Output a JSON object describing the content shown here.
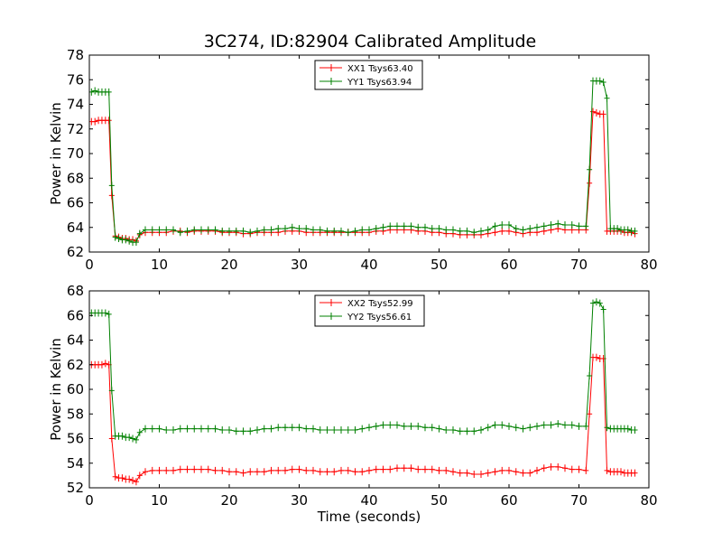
{
  "figure": {
    "title": "3C274, ID:82904 Calibrated Amplitude"
  },
  "chart_data": [
    {
      "type": "line",
      "title": "3C274, ID:82904 Calibrated Amplitude",
      "xlabel": "",
      "ylabel": "Power in Kelvin",
      "xlim": [
        0,
        80
      ],
      "ylim": [
        62,
        78
      ],
      "xticks": [
        "0",
        "10",
        "20",
        "30",
        "40",
        "50",
        "60",
        "70",
        "80"
      ],
      "yticks": [
        "62",
        "64",
        "66",
        "68",
        "70",
        "72",
        "74",
        "76",
        "78"
      ],
      "grid": false,
      "legend_position": "top-center",
      "marker": "+",
      "series": [
        {
          "name": "XX1 Tsys63.40",
          "color": "#ff0000",
          "x": [
            0.3,
            0.8,
            1.3,
            1.8,
            2.3,
            2.8,
            3.2,
            3.7,
            4.2,
            4.7,
            5.2,
            5.7,
            6.2,
            6.7,
            7.2,
            8,
            9,
            10,
            11,
            12,
            13,
            14,
            15,
            16,
            17,
            18,
            19,
            20,
            21,
            22,
            23,
            24,
            25,
            26,
            27,
            28,
            29,
            30,
            31,
            32,
            33,
            34,
            35,
            36,
            37,
            38,
            39,
            40,
            41,
            42,
            43,
            44,
            45,
            46,
            47,
            48,
            49,
            50,
            51,
            52,
            53,
            54,
            55,
            56,
            57,
            58,
            59,
            60,
            61,
            62,
            63,
            64,
            65,
            66,
            67,
            68,
            69,
            70,
            71,
            71.5,
            72,
            72.5,
            73,
            73.5,
            74,
            74.5,
            75,
            75.5,
            76,
            76.5,
            77,
            77.5,
            78
          ],
          "values": [
            72.6,
            72.6,
            72.7,
            72.7,
            72.7,
            72.7,
            66.6,
            63.3,
            63.2,
            63.1,
            63.1,
            63.0,
            63.0,
            62.9,
            63.4,
            63.6,
            63.6,
            63.6,
            63.6,
            63.7,
            63.7,
            63.6,
            63.7,
            63.7,
            63.7,
            63.7,
            63.6,
            63.6,
            63.6,
            63.5,
            63.5,
            63.6,
            63.6,
            63.6,
            63.6,
            63.7,
            63.7,
            63.7,
            63.6,
            63.6,
            63.6,
            63.6,
            63.6,
            63.6,
            63.6,
            63.6,
            63.6,
            63.6,
            63.7,
            63.7,
            63.8,
            63.8,
            63.8,
            63.8,
            63.7,
            63.7,
            63.6,
            63.6,
            63.5,
            63.5,
            63.4,
            63.4,
            63.4,
            63.4,
            63.5,
            63.6,
            63.7,
            63.7,
            63.6,
            63.5,
            63.6,
            63.6,
            63.7,
            63.8,
            63.9,
            63.8,
            63.8,
            63.8,
            63.8,
            67.6,
            73.4,
            73.3,
            73.2,
            73.2,
            63.7,
            63.7,
            63.7,
            63.7,
            63.7,
            63.6,
            63.6,
            63.6,
            63.5
          ]
        },
        {
          "name": "YY1 Tsys63.94",
          "color": "#008000",
          "x": [
            0.3,
            0.8,
            1.3,
            1.8,
            2.3,
            2.8,
            3.2,
            3.7,
            4.2,
            4.7,
            5.2,
            5.7,
            6.2,
            6.7,
            7.2,
            8,
            9,
            10,
            11,
            12,
            13,
            14,
            15,
            16,
            17,
            18,
            19,
            20,
            21,
            22,
            23,
            24,
            25,
            26,
            27,
            28,
            29,
            30,
            31,
            32,
            33,
            34,
            35,
            36,
            37,
            38,
            39,
            40,
            41,
            42,
            43,
            44,
            45,
            46,
            47,
            48,
            49,
            50,
            51,
            52,
            53,
            54,
            55,
            56,
            57,
            58,
            59,
            60,
            61,
            62,
            63,
            64,
            65,
            66,
            67,
            68,
            69,
            70,
            71,
            71.5,
            72,
            72.5,
            73,
            73.5,
            74,
            74.5,
            75,
            75.5,
            76,
            76.5,
            77,
            77.5,
            78
          ],
          "values": [
            75.0,
            75.1,
            75.0,
            75.0,
            75.0,
            75.0,
            67.4,
            63.2,
            63.1,
            63.0,
            63.0,
            62.9,
            62.8,
            62.8,
            63.5,
            63.8,
            63.8,
            63.8,
            63.8,
            63.8,
            63.6,
            63.7,
            63.8,
            63.8,
            63.8,
            63.8,
            63.7,
            63.7,
            63.7,
            63.7,
            63.6,
            63.7,
            63.8,
            63.8,
            63.9,
            63.9,
            64.0,
            63.9,
            63.9,
            63.8,
            63.8,
            63.7,
            63.7,
            63.7,
            63.6,
            63.7,
            63.8,
            63.8,
            63.9,
            64.0,
            64.1,
            64.1,
            64.1,
            64.1,
            64.0,
            64.0,
            63.9,
            63.9,
            63.8,
            63.8,
            63.7,
            63.7,
            63.6,
            63.7,
            63.8,
            64.1,
            64.2,
            64.2,
            63.9,
            63.8,
            63.9,
            64.0,
            64.1,
            64.2,
            64.3,
            64.2,
            64.2,
            64.1,
            64.1,
            68.7,
            75.9,
            75.9,
            75.9,
            75.8,
            74.5,
            63.9,
            63.9,
            63.9,
            63.8,
            63.8,
            63.8,
            63.7,
            63.7
          ]
        }
      ]
    },
    {
      "type": "line",
      "title": "",
      "xlabel": "Time (seconds)",
      "ylabel": "Power in Kelvin",
      "xlim": [
        0,
        80
      ],
      "ylim": [
        52,
        68
      ],
      "xticks": [
        "0",
        "10",
        "20",
        "30",
        "40",
        "50",
        "60",
        "70",
        "80"
      ],
      "yticks": [
        "52",
        "54",
        "56",
        "58",
        "60",
        "62",
        "64",
        "66",
        "68"
      ],
      "grid": false,
      "legend_position": "top-center",
      "marker": "+",
      "series": [
        {
          "name": "XX2 Tsys52.99",
          "color": "#ff0000",
          "x": [
            0.3,
            0.8,
            1.3,
            1.8,
            2.3,
            2.8,
            3.2,
            3.7,
            4.2,
            4.7,
            5.2,
            5.7,
            6.2,
            6.7,
            7.2,
            8,
            9,
            10,
            11,
            12,
            13,
            14,
            15,
            16,
            17,
            18,
            19,
            20,
            21,
            22,
            23,
            24,
            25,
            26,
            27,
            28,
            29,
            30,
            31,
            32,
            33,
            34,
            35,
            36,
            37,
            38,
            39,
            40,
            41,
            42,
            43,
            44,
            45,
            46,
            47,
            48,
            49,
            50,
            51,
            52,
            53,
            54,
            55,
            56,
            57,
            58,
            59,
            60,
            61,
            62,
            63,
            64,
            65,
            66,
            67,
            68,
            69,
            70,
            71,
            71.5,
            72,
            72.5,
            73,
            73.5,
            74,
            74.5,
            75,
            75.5,
            76,
            76.5,
            77,
            77.5,
            78
          ],
          "values": [
            62.0,
            62.0,
            62.0,
            62.0,
            62.1,
            62.0,
            56.0,
            52.9,
            52.8,
            52.8,
            52.7,
            52.7,
            52.6,
            52.5,
            53.0,
            53.3,
            53.4,
            53.4,
            53.4,
            53.4,
            53.5,
            53.5,
            53.5,
            53.5,
            53.5,
            53.4,
            53.4,
            53.3,
            53.3,
            53.2,
            53.3,
            53.3,
            53.3,
            53.4,
            53.4,
            53.4,
            53.5,
            53.5,
            53.4,
            53.4,
            53.3,
            53.3,
            53.3,
            53.4,
            53.4,
            53.3,
            53.3,
            53.4,
            53.5,
            53.5,
            53.5,
            53.6,
            53.6,
            53.6,
            53.5,
            53.5,
            53.5,
            53.4,
            53.4,
            53.3,
            53.2,
            53.2,
            53.1,
            53.1,
            53.2,
            53.3,
            53.4,
            53.4,
            53.3,
            53.2,
            53.2,
            53.4,
            53.6,
            53.7,
            53.7,
            53.6,
            53.5,
            53.5,
            53.4,
            58.0,
            62.6,
            62.6,
            62.5,
            62.5,
            53.4,
            53.3,
            53.3,
            53.3,
            53.3,
            53.2,
            53.2,
            53.2,
            53.2
          ]
        },
        {
          "name": "YY2 Tsys56.61",
          "color": "#008000",
          "x": [
            0.3,
            0.8,
            1.3,
            1.8,
            2.3,
            2.8,
            3.2,
            3.7,
            4.2,
            4.7,
            5.2,
            5.7,
            6.2,
            6.7,
            7.2,
            8,
            9,
            10,
            11,
            12,
            13,
            14,
            15,
            16,
            17,
            18,
            19,
            20,
            21,
            22,
            23,
            24,
            25,
            26,
            27,
            28,
            29,
            30,
            31,
            32,
            33,
            34,
            35,
            36,
            37,
            38,
            39,
            40,
            41,
            42,
            43,
            44,
            45,
            46,
            47,
            48,
            49,
            50,
            51,
            52,
            53,
            54,
            55,
            56,
            57,
            58,
            59,
            60,
            61,
            62,
            63,
            64,
            65,
            66,
            67,
            68,
            69,
            70,
            71,
            71.5,
            72,
            72.5,
            73,
            73.5,
            74,
            74.5,
            75,
            75.5,
            76,
            76.5,
            77,
            77.5,
            78
          ],
          "values": [
            66.2,
            66.2,
            66.2,
            66.2,
            66.2,
            66.1,
            59.9,
            56.2,
            56.2,
            56.2,
            56.1,
            56.1,
            56.0,
            55.9,
            56.5,
            56.8,
            56.8,
            56.8,
            56.7,
            56.7,
            56.8,
            56.8,
            56.8,
            56.8,
            56.8,
            56.8,
            56.7,
            56.7,
            56.6,
            56.6,
            56.6,
            56.7,
            56.8,
            56.8,
            56.9,
            56.9,
            56.9,
            56.9,
            56.8,
            56.8,
            56.7,
            56.7,
            56.7,
            56.7,
            56.7,
            56.7,
            56.8,
            56.9,
            57.0,
            57.1,
            57.1,
            57.1,
            57.0,
            57.0,
            57.0,
            56.9,
            56.9,
            56.8,
            56.7,
            56.7,
            56.6,
            56.6,
            56.6,
            56.7,
            56.9,
            57.1,
            57.1,
            57.0,
            56.9,
            56.8,
            56.9,
            57.0,
            57.1,
            57.1,
            57.2,
            57.1,
            57.1,
            57.0,
            57.0,
            61.1,
            67.0,
            67.1,
            67.0,
            66.5,
            56.9,
            56.8,
            56.8,
            56.8,
            56.8,
            56.8,
            56.8,
            56.7,
            56.7
          ]
        }
      ]
    }
  ]
}
